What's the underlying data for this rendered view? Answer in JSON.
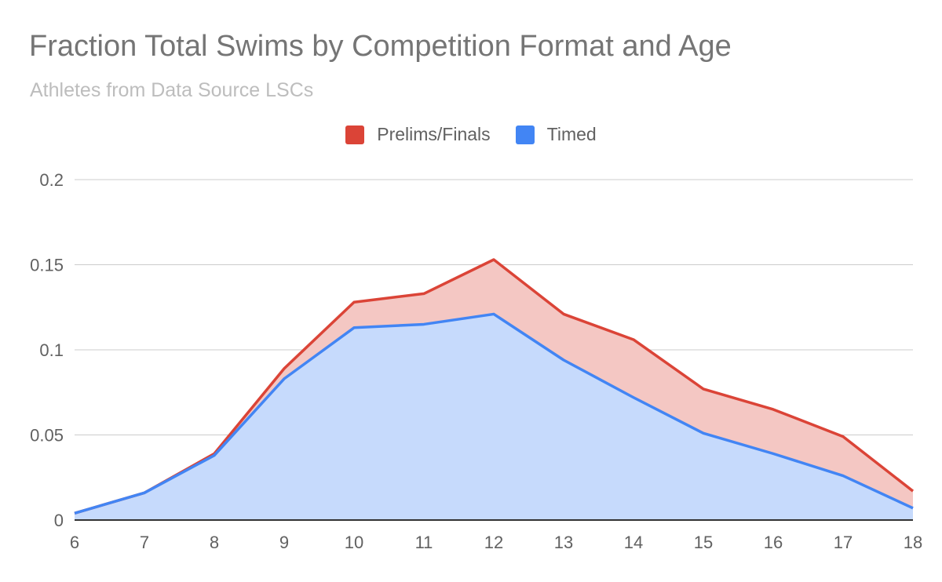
{
  "chart_data": {
    "type": "area",
    "title": "Fraction Total Swims by Competition Format and Age",
    "subtitle": "Athletes from Data Source LSCs",
    "xlabel": "",
    "ylabel": "",
    "x": [
      6,
      7,
      8,
      9,
      10,
      11,
      12,
      13,
      14,
      15,
      16,
      17,
      18
    ],
    "x_tick_labels": [
      "6",
      "7",
      "8",
      "9",
      "10",
      "11",
      "12",
      "13",
      "14",
      "15",
      "16",
      "17",
      "18"
    ],
    "ylim": [
      0,
      0.2
    ],
    "y_ticks": [
      0,
      0.05,
      0.1,
      0.15,
      0.2
    ],
    "y_tick_labels": [
      "0",
      "0.05",
      "0.1",
      "0.15",
      "0.2"
    ],
    "grid": true,
    "legend_position": "top-center",
    "series": [
      {
        "name": "Prelims/Finals",
        "color": "#db4437",
        "fill": "#f4c7c3",
        "values": [
          0.004,
          0.016,
          0.039,
          0.089,
          0.128,
          0.133,
          0.153,
          0.121,
          0.106,
          0.077,
          0.065,
          0.049,
          0.017
        ]
      },
      {
        "name": "Timed",
        "color": "#4285f4",
        "fill": "#c6dafc",
        "values": [
          0.004,
          0.016,
          0.038,
          0.083,
          0.113,
          0.115,
          0.121,
          0.094,
          0.072,
          0.051,
          0.039,
          0.026,
          0.007
        ]
      }
    ]
  }
}
